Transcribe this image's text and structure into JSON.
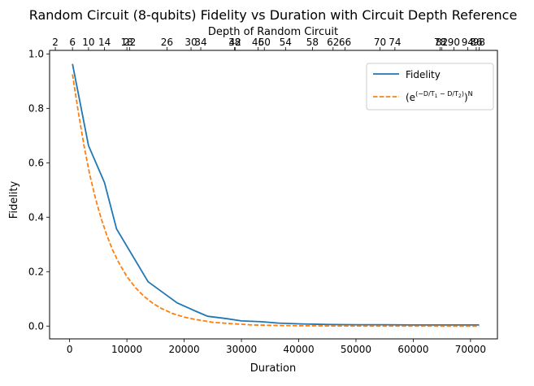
{
  "chart_data": {
    "type": "line",
    "title": "Random Circuit (8-qubits) Fidelity vs Duration with Circuit Depth Reference",
    "xlabel": "Duration",
    "ylabel": "Fidelity",
    "top_xlabel": "Depth of Random Circuit",
    "xlim": [
      -3500,
      74700
    ],
    "ylim": [
      -0.047,
      1.013
    ],
    "grid": false,
    "legend_position": "top-right",
    "x_ticks": [
      0,
      10000,
      20000,
      30000,
      40000,
      50000,
      60000,
      70000
    ],
    "x_tick_labels": [
      "0",
      "10000",
      "20000",
      "30000",
      "40000",
      "50000",
      "60000",
      "70000"
    ],
    "y_ticks": [
      0.0,
      0.2,
      0.4,
      0.6,
      0.8,
      1.0
    ],
    "y_tick_labels": [
      "0.0",
      "0.2",
      "0.4",
      "0.6",
      "0.8",
      "1.0"
    ],
    "top_axis": {
      "depth": [
        2,
        6,
        10,
        14,
        18,
        22,
        26,
        30,
        34,
        38,
        42,
        46,
        50,
        54,
        58,
        62,
        66,
        70,
        74,
        78,
        82,
        86,
        90,
        94,
        98
      ],
      "duration": [
        -2500,
        500,
        3300,
        6100,
        10000,
        10500,
        17000,
        21200,
        22900,
        28800,
        28900,
        32900,
        34000,
        37700,
        42400,
        46000,
        48100,
        54200,
        56800,
        64700,
        65000,
        71000,
        67100,
        69500,
        71500
      ]
    },
    "series": [
      {
        "name": "Fidelity",
        "color": "#1f77b4",
        "style": "solid",
        "x": [
          500,
          3300,
          6100,
          8200,
          13700,
          18800,
          22200,
          24100,
          27500,
          30000,
          33500,
          36500,
          40500,
          45000,
          50000,
          55000,
          60000,
          65000,
          71500
        ],
        "y": [
          0.963,
          0.663,
          0.527,
          0.357,
          0.163,
          0.085,
          0.053,
          0.036,
          0.027,
          0.019,
          0.016,
          0.011,
          0.008,
          0.006,
          0.005,
          0.005,
          0.004,
          0.004,
          0.004
        ]
      },
      {
        "name": "(e^(−D/T1 − D/T2))^N",
        "color": "#ff7f0e",
        "style": "dashed",
        "x": [
          500,
          1500,
          2500,
          3500,
          4500,
          5500,
          6500,
          7500,
          8500,
          10000,
          11500,
          13000,
          14500,
          16000,
          18000,
          20000,
          22000,
          25000,
          28000,
          32000,
          37000,
          45000,
          55000,
          65000,
          71500
        ],
        "y": [
          0.925,
          0.789,
          0.664,
          0.558,
          0.47,
          0.396,
          0.333,
          0.28,
          0.236,
          0.182,
          0.141,
          0.109,
          0.084,
          0.065,
          0.046,
          0.033,
          0.024,
          0.014,
          0.009,
          0.004,
          0.002,
          0.0005,
          0.0001,
          0.0,
          0.0
        ]
      }
    ],
    "legend": {
      "entry_1": "Fidelity",
      "entry_2_base": "(e",
      "entry_2_exp": "(−D/T",
      "entry_2_sub1": "1",
      "entry_2_mid": " − D/T",
      "entry_2_sub2": "2",
      "entry_2_close": ")",
      "entry_2_close2": ")",
      "entry_2_power": "N"
    }
  }
}
